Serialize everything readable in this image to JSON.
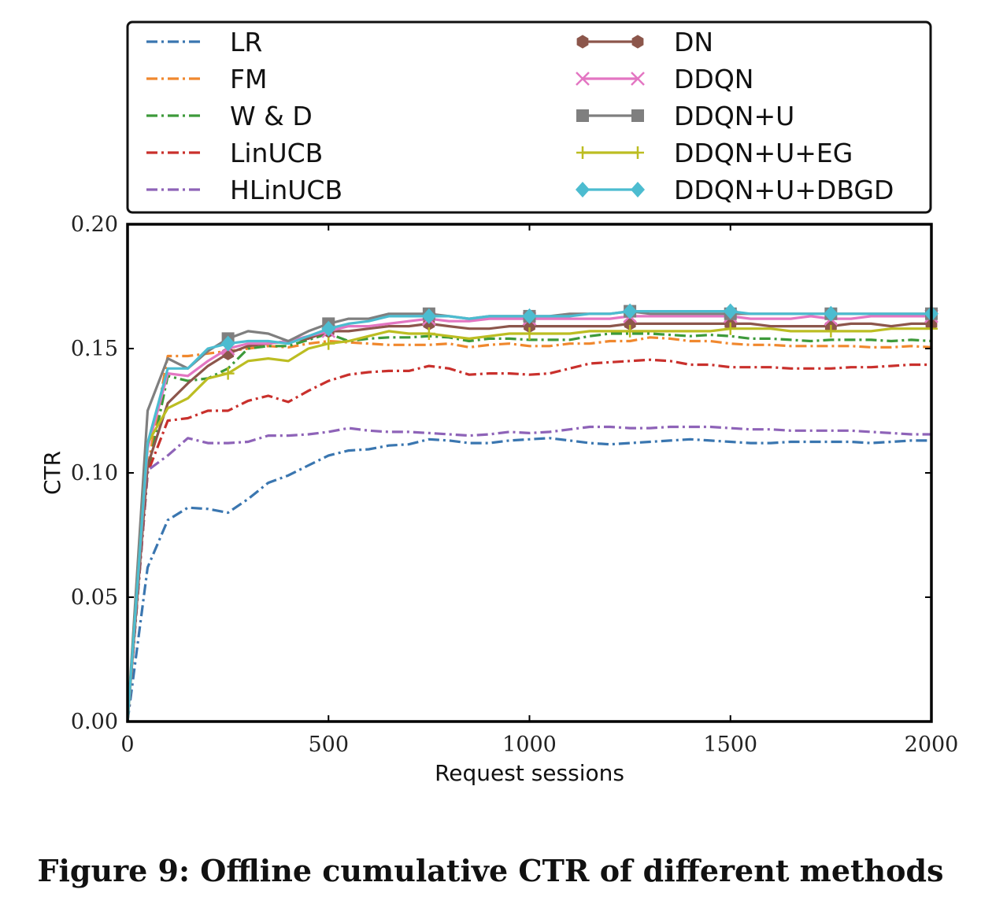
{
  "caption": "Figure 9: Offline cumulative CTR of different methods",
  "chart_data": {
    "type": "line",
    "title": "",
    "xlabel": "Request sessions",
    "ylabel": "CTR",
    "xlim": [
      0,
      2000
    ],
    "ylim": [
      0,
      0.2
    ],
    "xticks": [
      0,
      500,
      1000,
      1500,
      2000
    ],
    "xtick_labels": [
      "0",
      "500",
      "1000",
      "1500",
      "2000"
    ],
    "yticks": [
      0,
      0.05,
      0.1,
      0.15,
      0.2
    ],
    "ytick_labels": [
      "0.00",
      "0.05",
      "0.10",
      "0.15",
      "0.20"
    ],
    "grid": false,
    "legend_position": "top (above plot, 2 columns)",
    "x": [
      0,
      50,
      100,
      150,
      200,
      250,
      300,
      350,
      400,
      450,
      500,
      550,
      600,
      650,
      700,
      750,
      800,
      850,
      900,
      950,
      1000,
      1050,
      1100,
      1150,
      1200,
      1250,
      1300,
      1350,
      1400,
      1450,
      1500,
      1550,
      1600,
      1650,
      1700,
      1750,
      1800,
      1850,
      1900,
      1950,
      2000
    ],
    "series": [
      {
        "name": "LR",
        "color": "#3a76b0",
        "style": "dashdot",
        "marker": "none",
        "values": [
          0.0,
          0.062,
          0.081,
          0.086,
          0.0855,
          0.084,
          0.0895,
          0.096,
          0.099,
          0.103,
          0.107,
          0.109,
          0.1095,
          0.111,
          0.1115,
          0.1135,
          0.113,
          0.112,
          0.112,
          0.113,
          0.1135,
          0.114,
          0.113,
          0.112,
          0.1115,
          0.112,
          0.1125,
          0.113,
          0.1135,
          0.113,
          0.1125,
          0.112,
          0.112,
          0.1125,
          0.1125,
          0.1125,
          0.1125,
          0.112,
          0.1125,
          0.113,
          0.113
        ]
      },
      {
        "name": "FM",
        "color": "#f0882e",
        "style": "dashdot",
        "marker": "none",
        "values": [
          0.0,
          0.102,
          0.147,
          0.147,
          0.148,
          0.149,
          0.15,
          0.151,
          0.1505,
          0.152,
          0.153,
          0.1525,
          0.152,
          0.1515,
          0.1515,
          0.1515,
          0.152,
          0.1505,
          0.1515,
          0.152,
          0.151,
          0.151,
          0.152,
          0.152,
          0.153,
          0.153,
          0.1545,
          0.154,
          0.153,
          0.153,
          0.152,
          0.1515,
          0.1515,
          0.151,
          0.151,
          0.151,
          0.151,
          0.1505,
          0.1505,
          0.151,
          0.1505
        ]
      },
      {
        "name": "W & D",
        "color": "#3d9a3a",
        "style": "dashdot",
        "marker": "none",
        "values": [
          0.0,
          0.1,
          0.139,
          0.137,
          0.138,
          0.142,
          0.15,
          0.151,
          0.151,
          0.1535,
          0.156,
          0.153,
          0.154,
          0.1545,
          0.1545,
          0.155,
          0.1545,
          0.153,
          0.154,
          0.154,
          0.1535,
          0.1535,
          0.1535,
          0.155,
          0.156,
          0.156,
          0.156,
          0.1555,
          0.155,
          0.1555,
          0.155,
          0.154,
          0.154,
          0.1535,
          0.153,
          0.1535,
          0.1535,
          0.1535,
          0.153,
          0.1535,
          0.153
        ]
      },
      {
        "name": "LinUCB",
        "color": "#c9302c",
        "style": "dashdot",
        "marker": "none",
        "values": [
          0.0,
          0.1,
          0.121,
          0.122,
          0.125,
          0.125,
          0.129,
          0.131,
          0.1285,
          0.133,
          0.137,
          0.1395,
          0.1405,
          0.141,
          0.141,
          0.143,
          0.142,
          0.1395,
          0.14,
          0.14,
          0.1395,
          0.14,
          0.142,
          0.144,
          0.1445,
          0.145,
          0.1455,
          0.145,
          0.1435,
          0.1435,
          0.1425,
          0.1425,
          0.1425,
          0.142,
          0.142,
          0.142,
          0.1425,
          0.1425,
          0.143,
          0.1435,
          0.1435
        ]
      },
      {
        "name": "HLinUCB",
        "color": "#8e63b8",
        "style": "dashdot",
        "marker": "none",
        "values": [
          0.0,
          0.101,
          0.107,
          0.114,
          0.112,
          0.112,
          0.1125,
          0.115,
          0.115,
          0.1155,
          0.1165,
          0.118,
          0.117,
          0.1165,
          0.1165,
          0.116,
          0.1155,
          0.115,
          0.1155,
          0.1165,
          0.116,
          0.1165,
          0.1175,
          0.1185,
          0.1185,
          0.118,
          0.118,
          0.1185,
          0.1185,
          0.1185,
          0.118,
          0.1175,
          0.1175,
          0.117,
          0.117,
          0.117,
          0.117,
          0.1165,
          0.116,
          0.1155,
          0.1155
        ]
      },
      {
        "name": "DN",
        "color": "#8c564b",
        "style": "solid",
        "marker": "hexagon",
        "values": [
          0.0,
          0.103,
          0.128,
          0.136,
          0.143,
          0.148,
          0.151,
          0.152,
          0.153,
          0.154,
          0.157,
          0.157,
          0.158,
          0.159,
          0.159,
          0.16,
          0.159,
          0.158,
          0.158,
          0.159,
          0.159,
          0.159,
          0.159,
          0.159,
          0.159,
          0.16,
          0.16,
          0.16,
          0.16,
          0.16,
          0.16,
          0.16,
          0.159,
          0.159,
          0.159,
          0.159,
          0.16,
          0.16,
          0.159,
          0.16,
          0.16
        ]
      },
      {
        "name": "DDQN",
        "color": "#e376c2",
        "style": "solid",
        "marker": "x",
        "values": [
          0.0,
          0.11,
          0.14,
          0.139,
          0.145,
          0.15,
          0.152,
          0.152,
          0.153,
          0.155,
          0.157,
          0.159,
          0.159,
          0.16,
          0.161,
          0.162,
          0.161,
          0.161,
          0.162,
          0.162,
          0.162,
          0.162,
          0.162,
          0.162,
          0.162,
          0.163,
          0.163,
          0.163,
          0.163,
          0.163,
          0.163,
          0.162,
          0.162,
          0.162,
          0.163,
          0.162,
          0.162,
          0.163,
          0.163,
          0.163,
          0.163
        ]
      },
      {
        "name": "DDQN+U",
        "color": "#7f7f7f",
        "style": "solid",
        "marker": "square",
        "values": [
          0.0,
          0.125,
          0.146,
          0.142,
          0.149,
          0.154,
          0.157,
          0.156,
          0.153,
          0.157,
          0.16,
          0.162,
          0.162,
          0.164,
          0.164,
          0.164,
          0.163,
          0.162,
          0.163,
          0.163,
          0.163,
          0.163,
          0.164,
          0.164,
          0.164,
          0.165,
          0.164,
          0.164,
          0.164,
          0.164,
          0.164,
          0.164,
          0.164,
          0.164,
          0.164,
          0.164,
          0.164,
          0.164,
          0.164,
          0.164,
          0.164
        ]
      },
      {
        "name": "DDQN+U+EG",
        "color": "#bcbd22",
        "style": "solid",
        "marker": "plus",
        "values": [
          0.0,
          0.112,
          0.126,
          0.13,
          0.138,
          0.14,
          0.145,
          0.146,
          0.145,
          0.15,
          0.152,
          0.153,
          0.155,
          0.157,
          0.156,
          0.156,
          0.155,
          0.154,
          0.155,
          0.156,
          0.156,
          0.156,
          0.156,
          0.157,
          0.157,
          0.157,
          0.157,
          0.157,
          0.157,
          0.157,
          0.158,
          0.158,
          0.158,
          0.157,
          0.157,
          0.157,
          0.157,
          0.157,
          0.158,
          0.158,
          0.158
        ]
      },
      {
        "name": "DDQN+U+DBGD",
        "color": "#4cbcd0",
        "style": "solid",
        "marker": "diamond",
        "values": [
          0.0,
          0.112,
          0.142,
          0.142,
          0.15,
          0.152,
          0.153,
          0.153,
          0.152,
          0.155,
          0.158,
          0.16,
          0.161,
          0.163,
          0.163,
          0.163,
          0.163,
          0.162,
          0.163,
          0.163,
          0.163,
          0.163,
          0.163,
          0.164,
          0.164,
          0.165,
          0.165,
          0.165,
          0.165,
          0.165,
          0.165,
          0.164,
          0.164,
          0.164,
          0.164,
          0.164,
          0.164,
          0.164,
          0.164,
          0.164,
          0.164
        ]
      }
    ]
  }
}
